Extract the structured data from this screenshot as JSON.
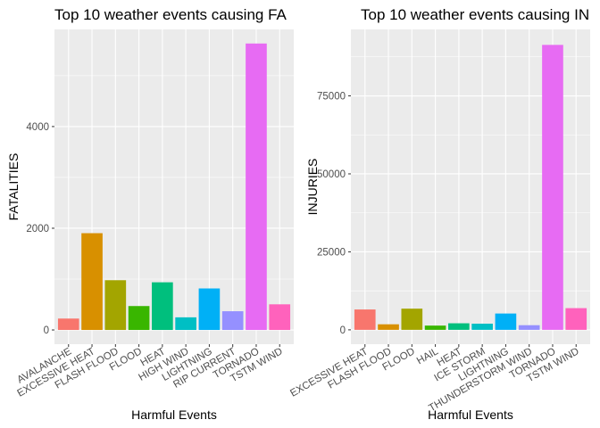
{
  "chart_data": [
    {
      "type": "bar",
      "title": "Top 10 weather events causing FA",
      "xlabel": "Harmful Events",
      "ylabel": "FATALITIES",
      "categories": [
        "AVALANCHE",
        "EXCESSIVE HEAT",
        "FLASH FLOOD",
        "FLOOD",
        "HEAT",
        "HIGH WIND",
        "LIGHTNING",
        "RIP CURRENT",
        "TORNADO",
        "TSTM WIND"
      ],
      "values": [
        224,
        1903,
        978,
        470,
        937,
        248,
        816,
        368,
        5633,
        504
      ],
      "colors": [
        "#F8766D",
        "#D89000",
        "#A3A500",
        "#39B600",
        "#00BF7D",
        "#00BFC4",
        "#00B0F6",
        "#9590FF",
        "#E76BF3",
        "#FF62BC"
      ],
      "ylim": [
        -280,
        5910
      ],
      "yticks": [
        0,
        2000,
        4000
      ],
      "ytick_labels": [
        "0",
        "2000",
        "4000"
      ],
      "grid": true,
      "legend": "none"
    },
    {
      "type": "bar",
      "title": "Top 10 weather events causing IN",
      "xlabel": "Harmful Events",
      "ylabel": "INJURIES",
      "categories": [
        "EXCESSIVE HEAT",
        "FLASH FLOOD",
        "FLOOD",
        "HAIL",
        "HEAT",
        "ICE STORM",
        "LIGHTNING",
        "THUNDERSTORM WIND",
        "TORNADO",
        "TSTM WIND"
      ],
      "values": [
        6525,
        1777,
        6789,
        1361,
        2100,
        1975,
        5230,
        1488,
        91346,
        6957
      ],
      "colors": [
        "#F8766D",
        "#D89000",
        "#A3A500",
        "#39B600",
        "#00BF7D",
        "#00BFC4",
        "#00B0F6",
        "#9590FF",
        "#E76BF3",
        "#FF62BC"
      ],
      "ylim": [
        -4600,
        96300
      ],
      "yticks": [
        0,
        25000,
        50000,
        75000
      ],
      "ytick_labels": [
        "0",
        "25000",
        "50000",
        "75000"
      ],
      "grid": true,
      "legend": "none"
    }
  ]
}
